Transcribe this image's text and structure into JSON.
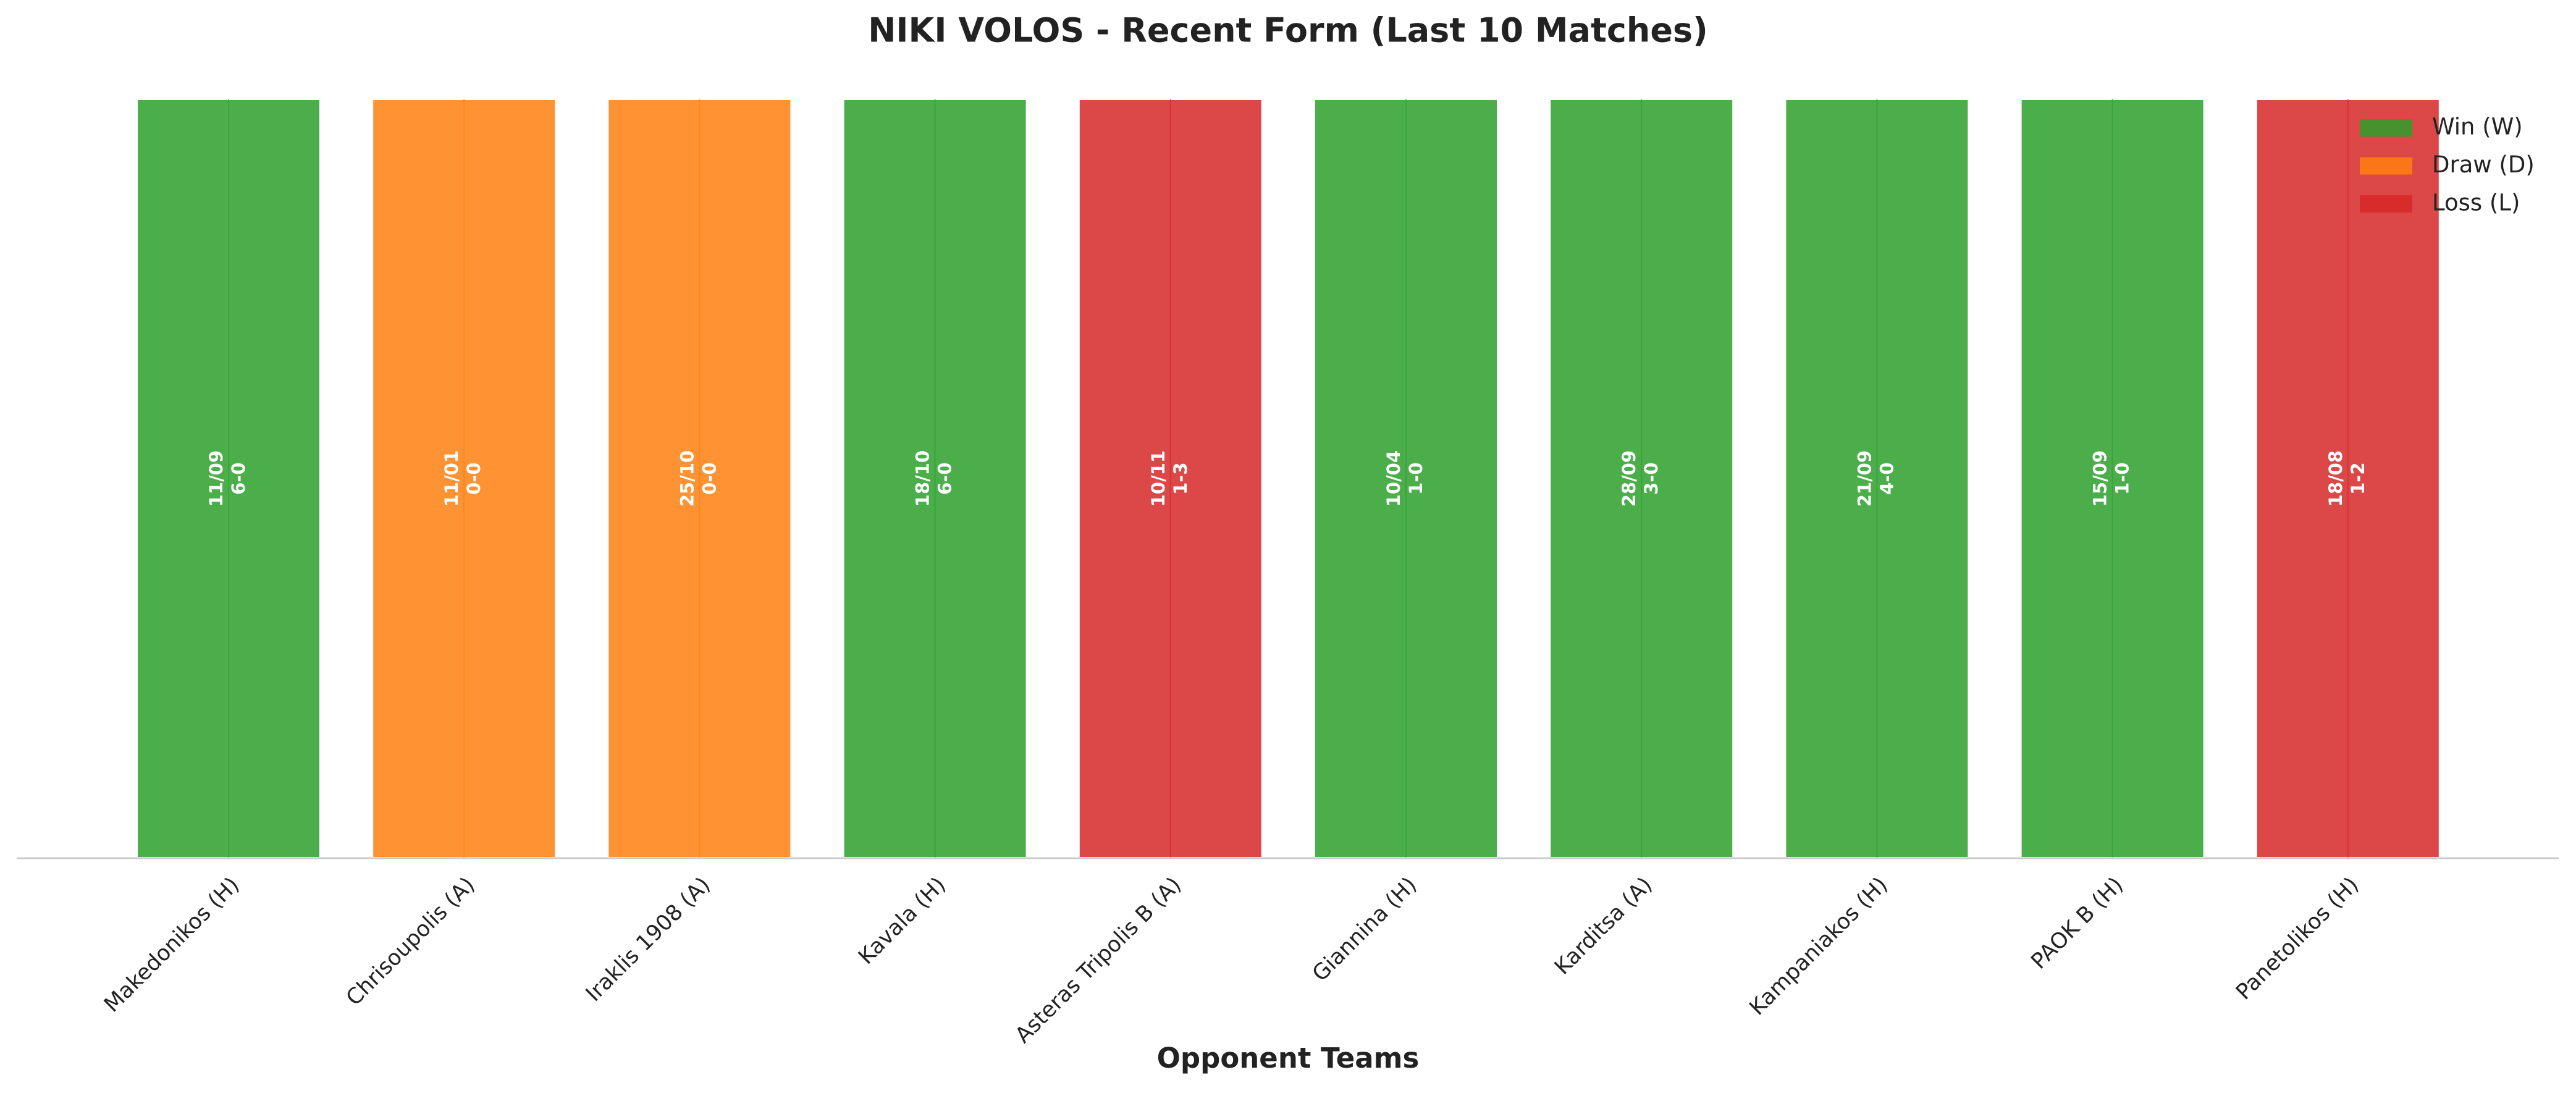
{
  "chart_data": {
    "type": "bar",
    "title": "NIKI VOLOS - Recent Form (Last 10 Matches)",
    "x_label": "Opponent Teams",
    "categories": [
      "Makedonikos (H)",
      "Chrisoupolis (A)",
      "Iraklis 1908 (A)",
      "Kavala (H)",
      "Asteras Tripolis B (A)",
      "Giannina (H)",
      "Karditsa (A)",
      "Kampaniakos (H)",
      "PAOK B (H)",
      "Panetolikos (H)"
    ],
    "values": [
      1,
      1,
      1,
      1,
      1,
      1,
      1,
      1,
      1,
      1
    ],
    "dates": [
      "11/09",
      "11/01",
      "25/10",
      "18/10",
      "10/11",
      "10/04",
      "28/09",
      "21/09",
      "15/09",
      "18/08"
    ],
    "scores": [
      "6-0",
      "0-0",
      "0-0",
      "6-0",
      "1-3",
      "1-0",
      "3-0",
      "4-0",
      "1-0",
      "1-2"
    ],
    "colors": [
      "#2ca02c",
      "#ff7f0e",
      "#ff7f0e",
      "#2ca02c",
      "#d62728",
      "#2ca02c",
      "#2ca02c",
      "#2ca02c",
      "#2ca02c",
      "#d62728"
    ],
    "ylim": [
      0,
      1
    ],
    "legend_position": "upper right",
    "legend": [
      {
        "name": "Win (W)",
        "color": "#2ca02c"
      },
      {
        "name": "Draw (D)",
        "color": "#ff7f0e"
      },
      {
        "name": "Loss (L)",
        "color": "#d62728"
      }
    ]
  }
}
